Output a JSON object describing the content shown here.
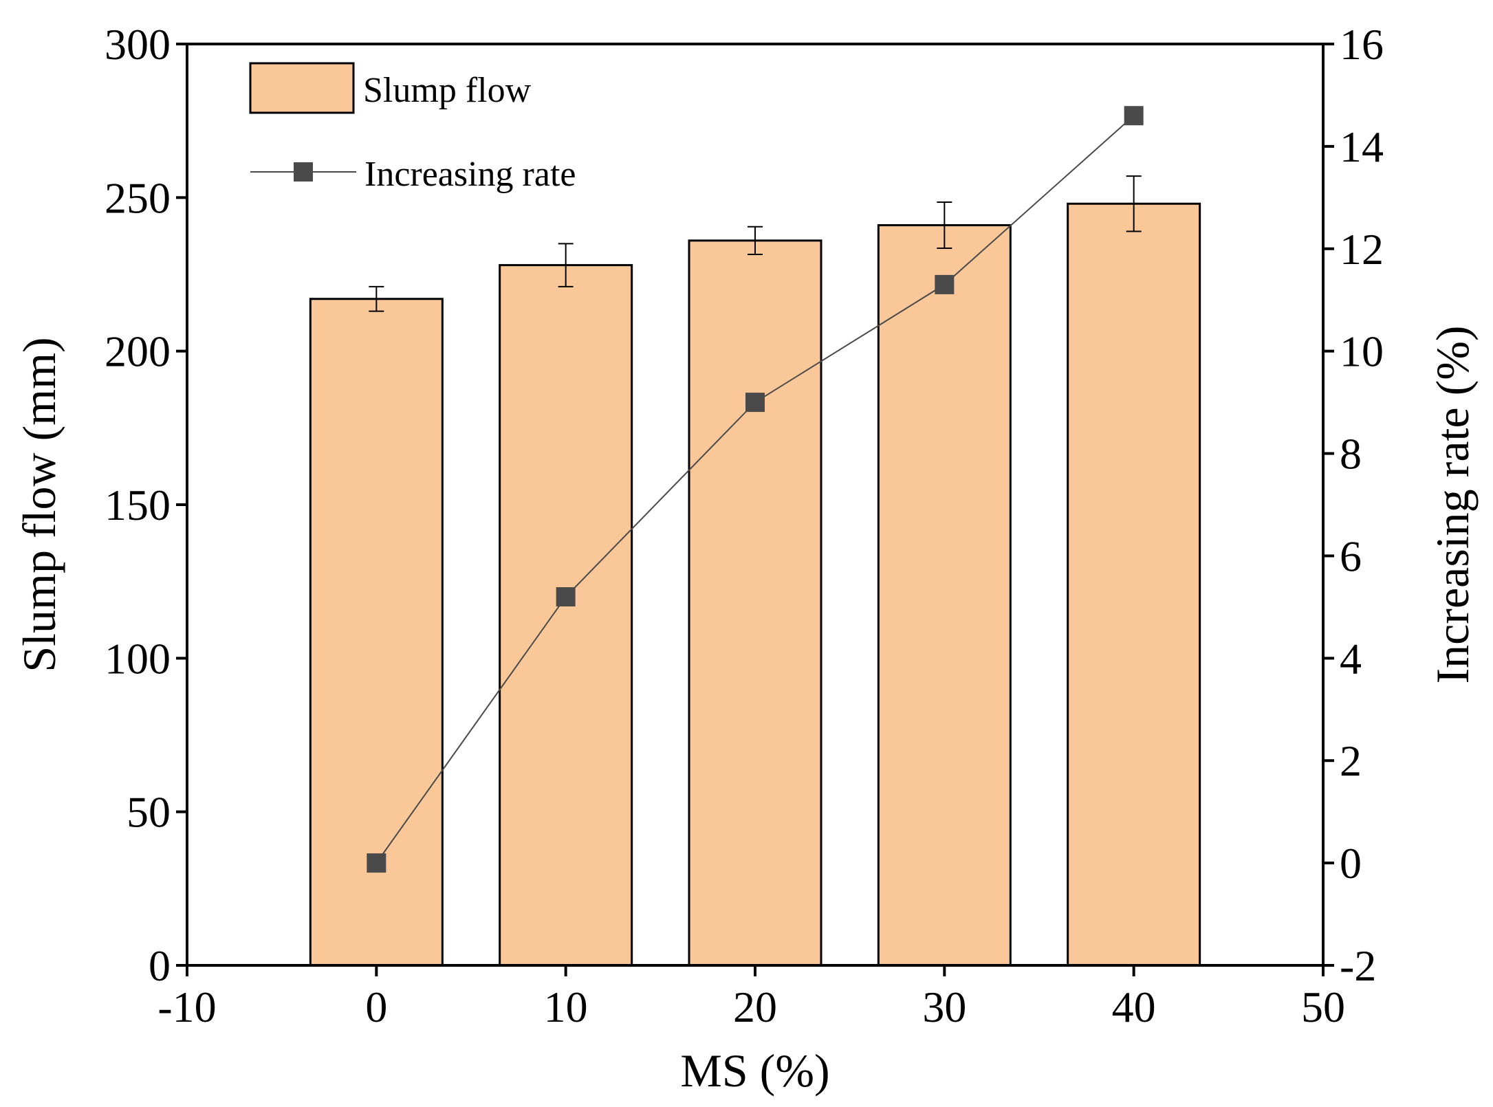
{
  "chart_data": {
    "type": "bar",
    "xlabel": "MS (%)",
    "ylabel": "Slump flow (mm)",
    "y2label": "Increasing rate (%)",
    "xlim": [
      -10,
      50
    ],
    "ylim": [
      0,
      300
    ],
    "y2lim": [
      -2,
      16
    ],
    "xticks": [
      -10,
      0,
      10,
      20,
      30,
      40,
      50
    ],
    "yticks": [
      0,
      50,
      100,
      150,
      200,
      250,
      300
    ],
    "y2ticks": [
      -2,
      0,
      2,
      4,
      6,
      8,
      10,
      12,
      14,
      16
    ],
    "categories": [
      0,
      10,
      20,
      30,
      40
    ],
    "legend_position": "top-left",
    "series": [
      {
        "name": "Slump flow",
        "type": "bar",
        "axis": "left",
        "values": [
          217,
          228,
          236,
          241,
          248
        ],
        "errors": [
          4,
          7,
          4.5,
          7.5,
          9
        ],
        "color": "#fac898"
      },
      {
        "name": "Increasing rate",
        "type": "line",
        "axis": "right",
        "marker": "square",
        "values": [
          0,
          5.2,
          9.0,
          11.3,
          14.6
        ],
        "color": "#4a4a4a"
      }
    ]
  }
}
